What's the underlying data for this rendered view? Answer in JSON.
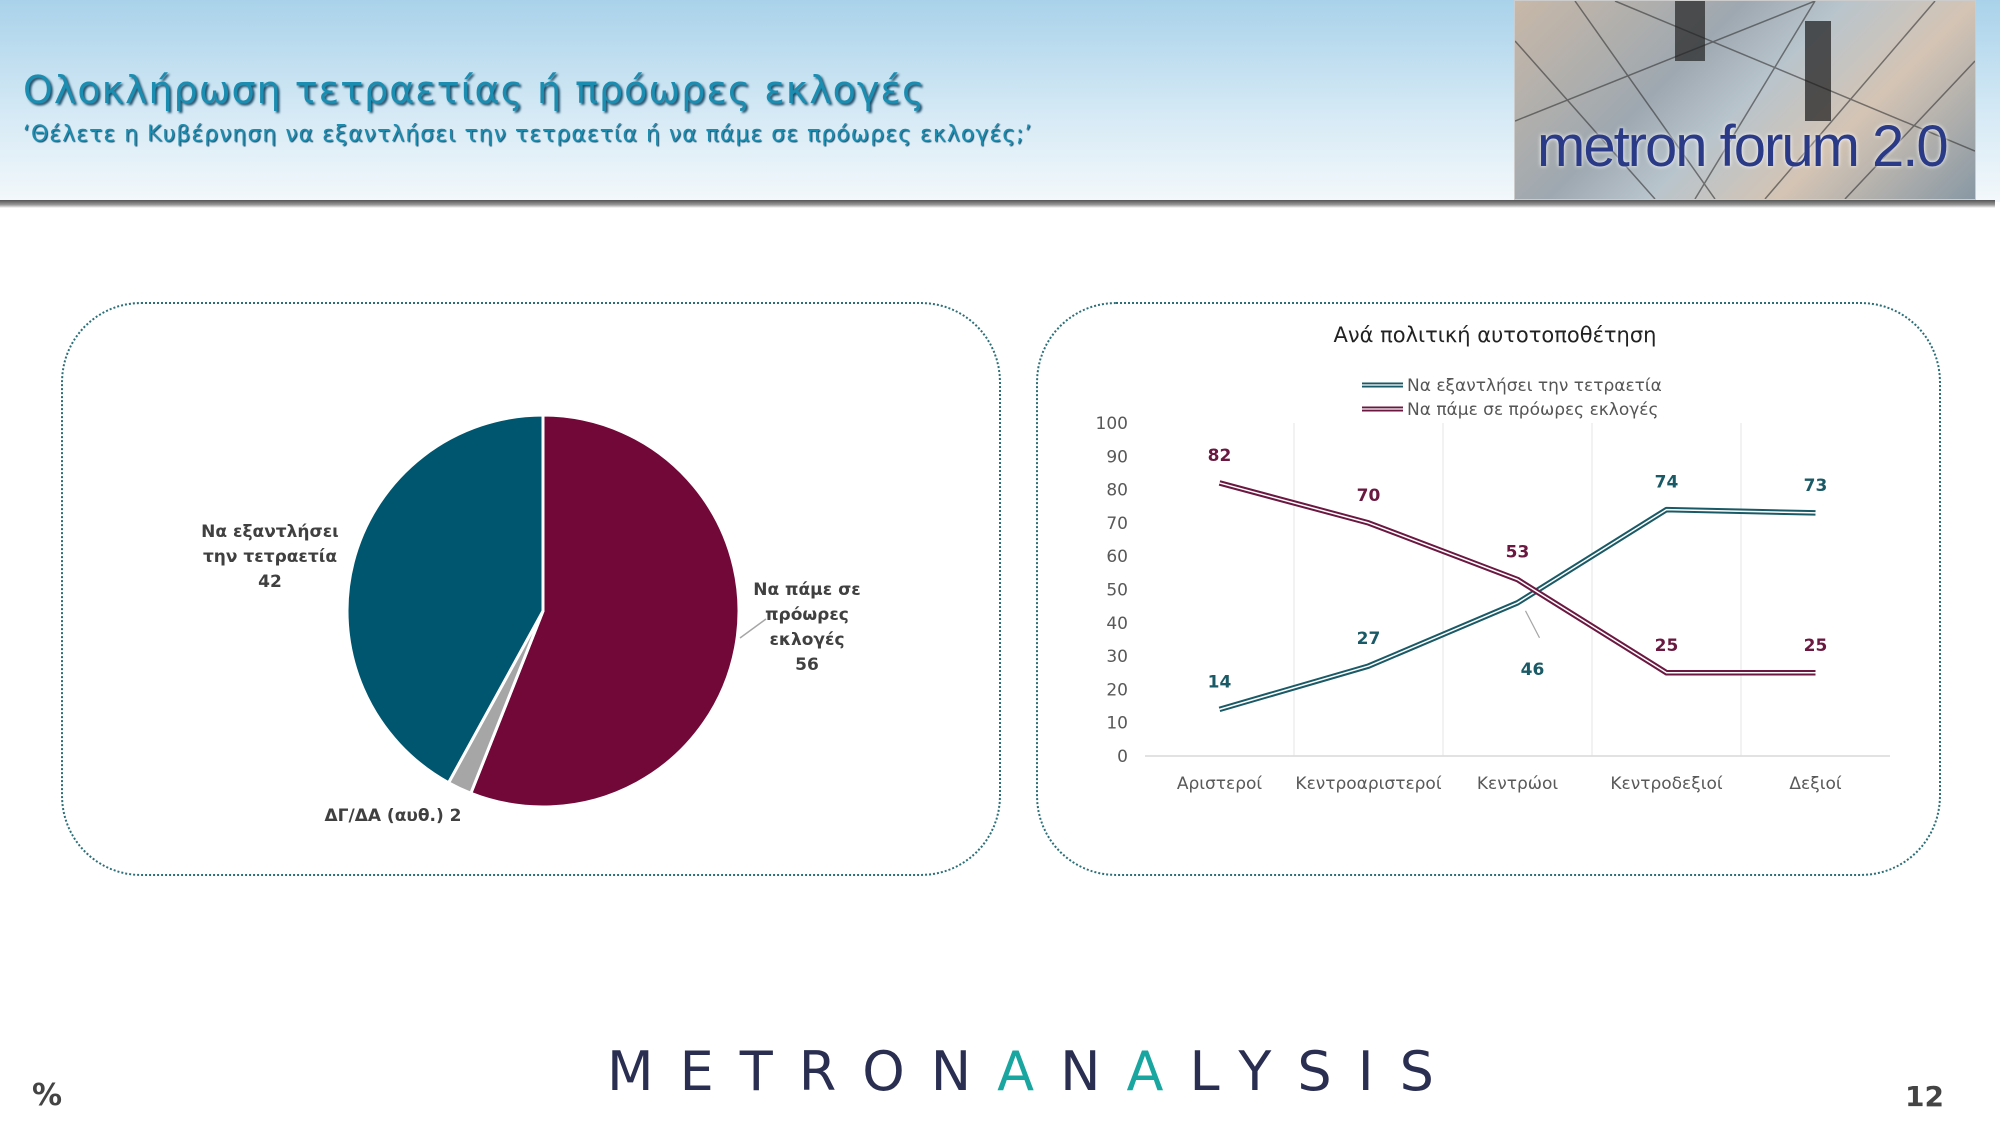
{
  "header": {
    "title": "Ολοκλήρωση τετραετίας ή πρόωρες εκλογές",
    "subtitle": "‘Θέλετε η Κυβέρνηση να εξαντλήσει την τετραετία ή να πάμε σε πρόωρες εκλογές;’",
    "logo_text": "metron forum 2.0"
  },
  "footer": {
    "brand": "METRONANALYSIS",
    "unit": "%",
    "page_number": "12"
  },
  "colors": {
    "teal": "#00566e",
    "maroon": "#720838",
    "gray": "#a6a6a6"
  },
  "chart_data": [
    {
      "type": "pie",
      "slices": [
        {
          "label": "Να πάμε σε πρόωρες εκλογές",
          "value": 56,
          "color": "#720838",
          "label_lines": [
            "Να πάμε σε",
            "πρόωρες",
            "εκλογές",
            "56"
          ]
        },
        {
          "label": "ΔΓ/ΔΑ (αυθ.)",
          "value": 2,
          "color": "#a6a6a6",
          "label_lines": [
            "ΔΓ/ΔΑ (αυθ.) 2"
          ]
        },
        {
          "label": "Να εξαντλήσει την τετραετία",
          "value": 42,
          "color": "#00566e",
          "label_lines": [
            "Να εξαντλήσει",
            "την τετραετία",
            "42"
          ]
        }
      ]
    },
    {
      "type": "line",
      "title": "Ανά πολιτική αυτοτοποθέτηση",
      "categories": [
        "Αριστεροί",
        "Κεντροαριστεροί",
        "Κεντρώοι",
        "Κεντροδεξιοί",
        "Δεξιοί"
      ],
      "ylim": [
        0,
        100
      ],
      "yticks": [
        0,
        10,
        20,
        30,
        40,
        50,
        60,
        70,
        80,
        90,
        100
      ],
      "grid": "vertical",
      "legend": "top",
      "series": [
        {
          "name": "Να εξαντλήσει την τετραετία",
          "color": "#1a5a66",
          "values": [
            14,
            27,
            46,
            74,
            73
          ]
        },
        {
          "name": "Να πάμε σε πρόωρες εκλογές",
          "color": "#6a1840",
          "values": [
            82,
            70,
            53,
            25,
            25
          ]
        }
      ]
    }
  ]
}
